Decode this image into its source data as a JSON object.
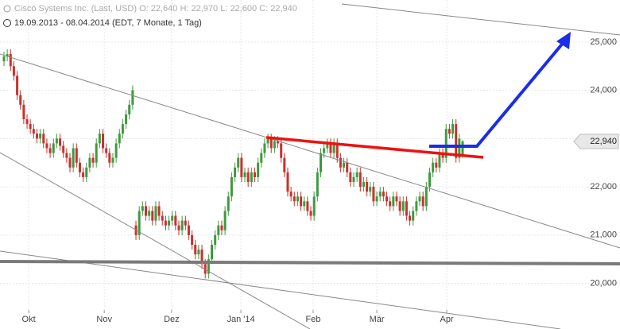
{
  "chart_data": {
    "type": "candlestick",
    "title": "Cisco Systems Inc. (Last, USD)  O: 22,640  H: 22,970  L: 22,600  C: 22,940",
    "subtitle": "19.09.2013 - 08.04.2014 (EDT, 7 Monate, 1 Tag)",
    "up_color": "#3f9a3f",
    "down_color": "#c8322e",
    "grid": true,
    "xlim": [
      -1.2,
      186.7
    ],
    "xticks": [
      {
        "value": 7.5,
        "label": "Okt"
      },
      {
        "value": 30.4,
        "label": "Nov"
      },
      {
        "value": 50.8,
        "label": "Dez"
      },
      {
        "value": 71.8,
        "label": "Jan '14"
      },
      {
        "value": 93.7,
        "label": "Feb"
      },
      {
        "value": 113,
        "label": "Mär"
      },
      {
        "value": 134.2,
        "label": "Apr"
      }
    ],
    "ylim": [
      19450,
      25870
    ],
    "yticks": [
      {
        "value": 20000,
        "label": "20,000"
      },
      {
        "value": 21000,
        "label": "21,000"
      },
      {
        "value": 22000,
        "label": "22,000"
      },
      {
        "value": 23000,
        "label": "23,000"
      },
      {
        "value": 24000,
        "label": "24,000"
      },
      {
        "value": 25000,
        "label": "25,000"
      }
    ],
    "last_price": {
      "value": 22940,
      "label": "22,940"
    },
    "open": [
      24600,
      24700,
      24750,
      24500,
      24300,
      23900,
      23700,
      23400,
      23300,
      23200,
      23100,
      23000,
      23100,
      22900,
      22800,
      22700,
      22900,
      23000,
      22850,
      22700,
      22600,
      22400,
      22800,
      22500,
      22300,
      22200,
      22400,
      22600,
      22500,
      22900,
      23100,
      22800,
      22700,
      22500,
      22600,
      22900,
      23100,
      23300,
      23500,
      23700,
      21200,
      21000,
      21500,
      21600,
      21400,
      21500,
      21300,
      21600,
      21400,
      21300,
      21200,
      21300,
      21400,
      21200,
      21100,
      21300,
      21200,
      21000,
      20800,
      20600,
      20700,
      20400,
      20200,
      20500,
      20800,
      21000,
      21200,
      21100,
      21500,
      21800,
      22200,
      22400,
      22600,
      22200,
      22300,
      22100,
      22300,
      22200,
      22500,
      22700,
      22900,
      23000,
      22800,
      22950,
      22900,
      22600,
      22300,
      21900,
      21800,
      21700,
      21800,
      21600,
      21700,
      21500,
      21400,
      21800,
      22300,
      22700,
      22800,
      22900,
      22700,
      22900,
      22600,
      22400,
      22500,
      22300,
      22100,
      22200,
      22300,
      22000,
      22100,
      21900,
      22000,
      21700,
      21800,
      21900,
      21800,
      21700,
      21600,
      21800,
      21700,
      21500,
      21700,
      21400,
      21300,
      21500,
      21700,
      21800,
      21600,
      22000,
      22300,
      22500,
      22400,
      22700,
      22600,
      23200,
      23100,
      23300,
      22600,
      22640
    ],
    "high": [
      24800,
      24850,
      24850,
      24600,
      24400,
      24000,
      23800,
      23500,
      23400,
      23300,
      23200,
      23200,
      23200,
      23000,
      22900,
      23000,
      23100,
      23100,
      22950,
      22800,
      22700,
      22900,
      22900,
      22600,
      22400,
      22500,
      22700,
      22700,
      23000,
      23200,
      23200,
      22900,
      22800,
      22700,
      23000,
      23200,
      23400,
      23600,
      23800,
      24100,
      21300,
      21600,
      21700,
      21700,
      21600,
      21600,
      21700,
      21700,
      21500,
      21400,
      21400,
      21500,
      21500,
      21300,
      21400,
      21400,
      21300,
      21100,
      20900,
      20800,
      20800,
      20500,
      20600,
      20900,
      21100,
      21300,
      21300,
      21600,
      21900,
      22300,
      22500,
      22700,
      22700,
      22400,
      22400,
      22400,
      22400,
      22600,
      22800,
      23000,
      23100,
      23100,
      23050,
      23050,
      23000,
      22700,
      22400,
      22000,
      21900,
      21900,
      21900,
      21800,
      21800,
      21600,
      21900,
      22400,
      22800,
      22900,
      23000,
      23000,
      23000,
      23000,
      22700,
      22600,
      22600,
      22400,
      22300,
      22400,
      22400,
      22200,
      22200,
      22100,
      22100,
      21900,
      22000,
      22000,
      21900,
      21800,
      21900,
      21900,
      21800,
      21800,
      21800,
      21500,
      21600,
      21800,
      21900,
      21900,
      22100,
      22400,
      22600,
      22600,
      22800,
      22800,
      23300,
      23300,
      23400,
      23400,
      23100,
      22970
    ],
    "low": [
      24500,
      24600,
      24400,
      24200,
      23800,
      23600,
      23300,
      23200,
      23100,
      23000,
      22900,
      22900,
      22800,
      22700,
      22600,
      22600,
      22800,
      22750,
      22600,
      22500,
      22300,
      22300,
      22400,
      22200,
      22100,
      22100,
      22300,
      22400,
      22400,
      22800,
      22700,
      22600,
      22400,
      22400,
      22500,
      22800,
      23000,
      23200,
      23400,
      23600,
      20900,
      20900,
      21400,
      21300,
      21300,
      21200,
      21200,
      21300,
      21200,
      21100,
      21100,
      21200,
      21100,
      21000,
      21000,
      21100,
      20900,
      20700,
      20500,
      20500,
      20300,
      20100,
      20100,
      20400,
      20700,
      20900,
      21000,
      21000,
      21400,
      21700,
      22100,
      22300,
      22100,
      22100,
      22000,
      22000,
      22100,
      22100,
      22400,
      22600,
      22800,
      22700,
      22700,
      22800,
      22500,
      22200,
      21800,
      21700,
      21600,
      21600,
      21500,
      21500,
      21400,
      21300,
      21300,
      21700,
      22200,
      22600,
      22700,
      22600,
      22600,
      22500,
      22300,
      22300,
      22200,
      22000,
      22000,
      22100,
      21900,
      21900,
      21800,
      21800,
      21600,
      21600,
      21700,
      21700,
      21600,
      21500,
      21500,
      21600,
      21400,
      21400,
      21300,
      21200,
      21200,
      21400,
      21600,
      21500,
      21500,
      21900,
      22200,
      22300,
      22300,
      22500,
      22500,
      23000,
      23000,
      22500,
      22500,
      22600
    ],
    "close": [
      24700,
      24750,
      24500,
      24300,
      23900,
      23700,
      23400,
      23300,
      23200,
      23100,
      23000,
      23100,
      22900,
      22800,
      22700,
      22900,
      23000,
      22850,
      22700,
      22600,
      22400,
      22800,
      22500,
      22300,
      22200,
      22400,
      22600,
      22500,
      22900,
      23100,
      22800,
      22700,
      22500,
      22600,
      22900,
      23100,
      23300,
      23500,
      23700,
      24000,
      21000,
      21500,
      21600,
      21400,
      21500,
      21300,
      21600,
      21400,
      21300,
      21200,
      21300,
      21400,
      21200,
      21100,
      21300,
      21200,
      21000,
      20800,
      20600,
      20700,
      20400,
      20200,
      20500,
      20800,
      21000,
      21200,
      21100,
      21500,
      21800,
      22200,
      22400,
      22600,
      22200,
      22300,
      22100,
      22300,
      22200,
      22500,
      22700,
      22900,
      23000,
      22800,
      22950,
      22900,
      22600,
      22300,
      21900,
      21800,
      21700,
      21800,
      21600,
      21700,
      21500,
      21400,
      21800,
      22300,
      22700,
      22800,
      22900,
      22700,
      22900,
      22600,
      22400,
      22500,
      22300,
      22100,
      22200,
      22300,
      22000,
      22100,
      21900,
      22000,
      21700,
      21800,
      21900,
      21800,
      21700,
      21600,
      21800,
      21700,
      21500,
      21700,
      21400,
      21300,
      21500,
      21700,
      21800,
      21600,
      22000,
      22300,
      22500,
      22400,
      22700,
      22600,
      23200,
      23100,
      23300,
      22600,
      23000,
      22940
    ]
  }
}
